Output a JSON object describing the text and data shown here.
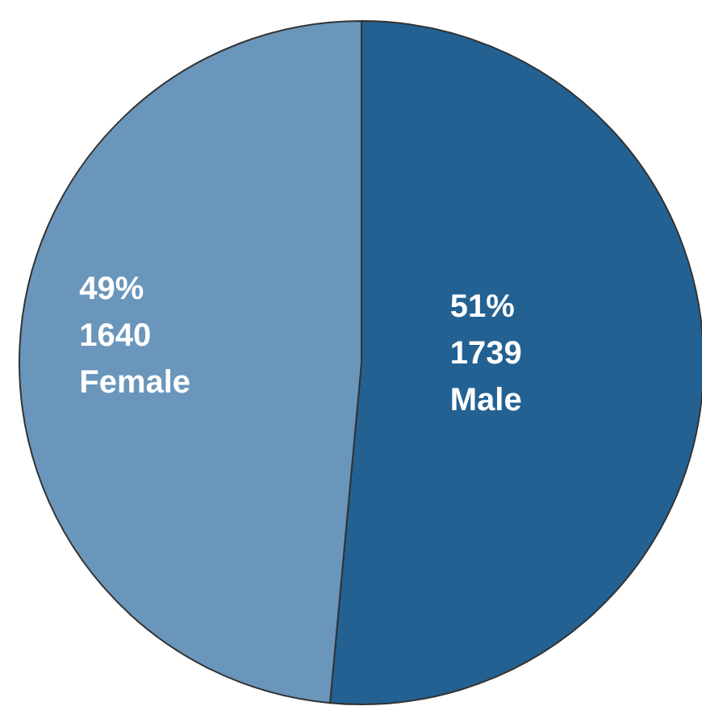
{
  "chart_data": {
    "type": "pie",
    "categories": [
      "Male",
      "Female"
    ],
    "values": [
      1739,
      1640
    ],
    "colors": [
      "#236192",
      "#6a96bb"
    ],
    "value_labels": [
      "51%\n1739",
      "49%\n1640"
    ]
  }
}
